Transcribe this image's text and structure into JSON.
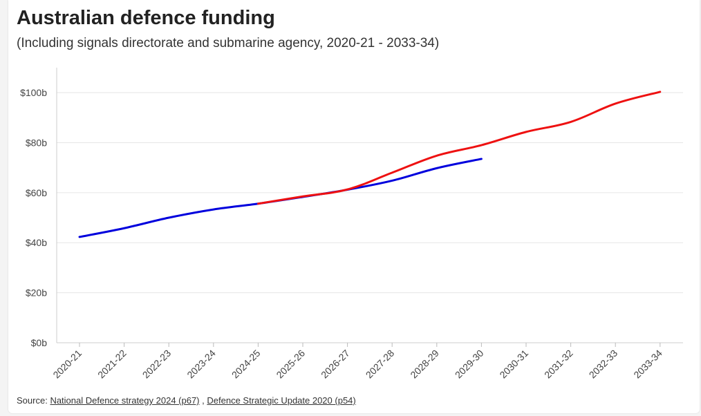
{
  "chart_data": {
    "type": "line",
    "title": "Australian defence funding",
    "subtitle": "(Including signals directorate and submarine agency, 2020-21 - 2033-34)",
    "categories": [
      "2020-21",
      "2021-22",
      "2022-23",
      "2023-24",
      "2024-25",
      "2025-26",
      "2026-27",
      "2027-28",
      "2028-29",
      "2029-30",
      "2030-31",
      "2031-32",
      "2032-33",
      "2033-34"
    ],
    "y_tick_labels": [
      "$0b",
      "$20b",
      "$40b",
      "$60b",
      "$80b",
      "$100b"
    ],
    "y_ticks": [
      0,
      20,
      40,
      60,
      80,
      100
    ],
    "ylim": [
      0,
      110
    ],
    "grid": true,
    "series": [
      {
        "color": "#0000dd",
        "values": [
          42.3,
          45.8,
          50.0,
          53.3,
          55.6,
          58.3,
          61.2,
          64.8,
          69.8,
          73.5,
          null,
          null,
          null,
          null
        ]
      },
      {
        "color": "#ee1111",
        "values": [
          null,
          null,
          null,
          null,
          55.6,
          58.5,
          61.3,
          68.0,
          74.8,
          79.0,
          84.3,
          88.3,
          95.6,
          100.3
        ]
      }
    ]
  },
  "source": {
    "label": "Source:",
    "links": [
      "National Defence strategy 2024 (p67)",
      "Defence Strategic Update 2020 (p54)"
    ],
    "separator": " ,"
  }
}
